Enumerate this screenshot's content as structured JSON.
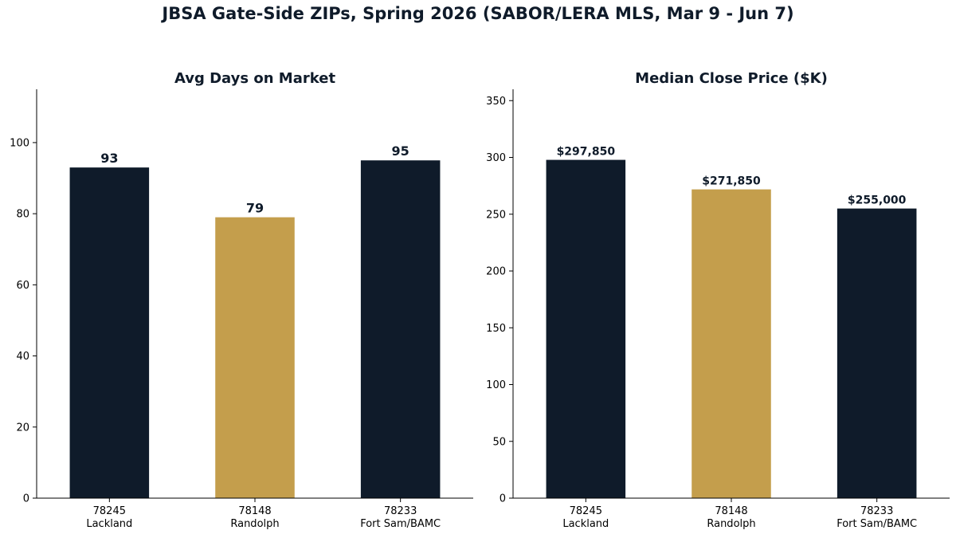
{
  "suptitle": "JBSA Gate-Side ZIPs, Spring 2026 (SABOR/LERA MLS, Mar 9 - Jun 7)",
  "colors": {
    "navy": "#0f1b2a",
    "gold": "#c49e4c"
  },
  "chart_data": [
    {
      "type": "bar",
      "title": "Avg Days on Market",
      "categories": [
        "78245\nLackland",
        "78148\nRandolph",
        "78233\nFort Sam/BAMC"
      ],
      "values": [
        93,
        79,
        95
      ],
      "value_labels": [
        "93",
        "79",
        "95"
      ],
      "bar_colors": [
        "#0f1b2a",
        "#c49e4c",
        "#0f1b2a"
      ],
      "ylim": [
        0,
        115
      ],
      "yticks": [
        0,
        20,
        40,
        60,
        80,
        100
      ],
      "xlabel": "",
      "ylabel": "",
      "grid": false
    },
    {
      "type": "bar",
      "title": "Median Close Price ($K)",
      "categories": [
        "78245\nLackland",
        "78148\nRandolph",
        "78233\nFort Sam/BAMC"
      ],
      "values": [
        297.85,
        271.85,
        255.0
      ],
      "value_labels": [
        "$297,850",
        "$271,850",
        "$255,000"
      ],
      "bar_colors": [
        "#0f1b2a",
        "#c49e4c",
        "#0f1b2a"
      ],
      "ylim": [
        0,
        360
      ],
      "yticks": [
        0,
        50,
        100,
        150,
        200,
        250,
        300,
        350
      ],
      "xlabel": "",
      "ylabel": "",
      "grid": false
    }
  ]
}
